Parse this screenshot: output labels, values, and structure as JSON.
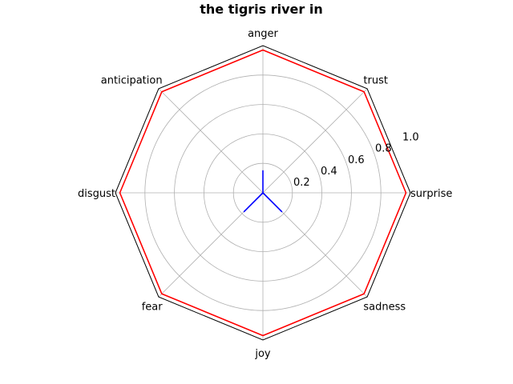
{
  "chart_data": {
    "type": "radar",
    "title": "the tigris river in",
    "categories": [
      "surprise",
      "trust",
      "anger",
      "anticipation",
      "disgust",
      "fear",
      "joy",
      "sadness"
    ],
    "rlim": [
      0,
      1.0
    ],
    "rticks": [
      0.2,
      0.4,
      0.6,
      0.8,
      1.0
    ],
    "rtick_labels": [
      "0.2",
      "0.4",
      "0.6",
      "0.8",
      "1.0"
    ],
    "grid": true,
    "series": [
      {
        "color": "#ff0000",
        "values": [
          0.97,
          0.97,
          0.97,
          0.97,
          0.97,
          0.97,
          0.97,
          0.97
        ]
      },
      {
        "color": "#0000ff",
        "values": [
          0.0,
          0.0,
          0.15,
          0.0,
          0.0,
          0.18,
          0.0,
          0.18
        ]
      }
    ],
    "colors": {
      "frame": "#000000",
      "grid": "#b0b0b0"
    }
  }
}
